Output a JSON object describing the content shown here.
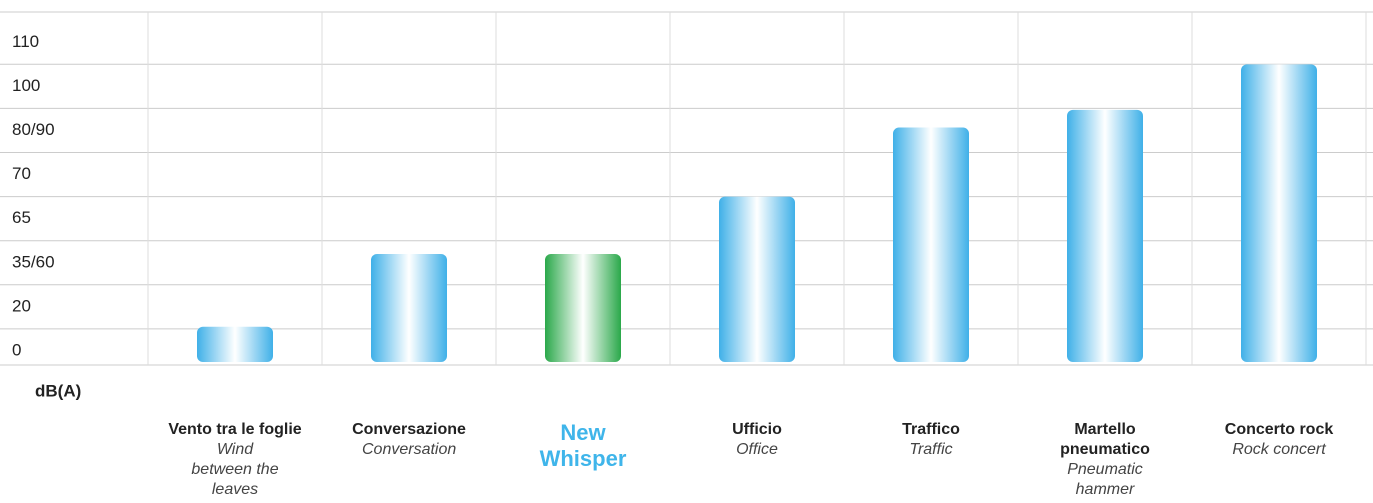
{
  "chart_data": {
    "type": "bar",
    "y_unit_label": "dB(A)",
    "categories": [
      "Vento tra le foglie",
      "Conversazione",
      "New Whisper",
      "Ufficio",
      "Traffico",
      "Martello pneumatico",
      "Concerto rock"
    ],
    "subtitles": [
      "Wind between the leaves",
      "Conversation",
      null,
      "Office",
      "Traffic",
      "Pneumatic hammer",
      "Rock concert"
    ],
    "values": [
      11,
      51,
      51,
      67.5,
      86,
      92,
      105
    ],
    "colors": [
      "#3fb0e8",
      "#3fb0e8",
      "#2aa84a",
      "#3fb0e8",
      "#3fb0e8",
      "#3fb0e8",
      "#3fb0e8"
    ],
    "highlight_color": "#3fb5ea",
    "ylim": [
      0,
      110
    ],
    "yticks": [
      0,
      20,
      {
        "value": 47.5,
        "label": "35/60"
      },
      65,
      70,
      {
        "value": 85,
        "label": "80/90"
      },
      100,
      110
    ],
    "grid": true
  }
}
